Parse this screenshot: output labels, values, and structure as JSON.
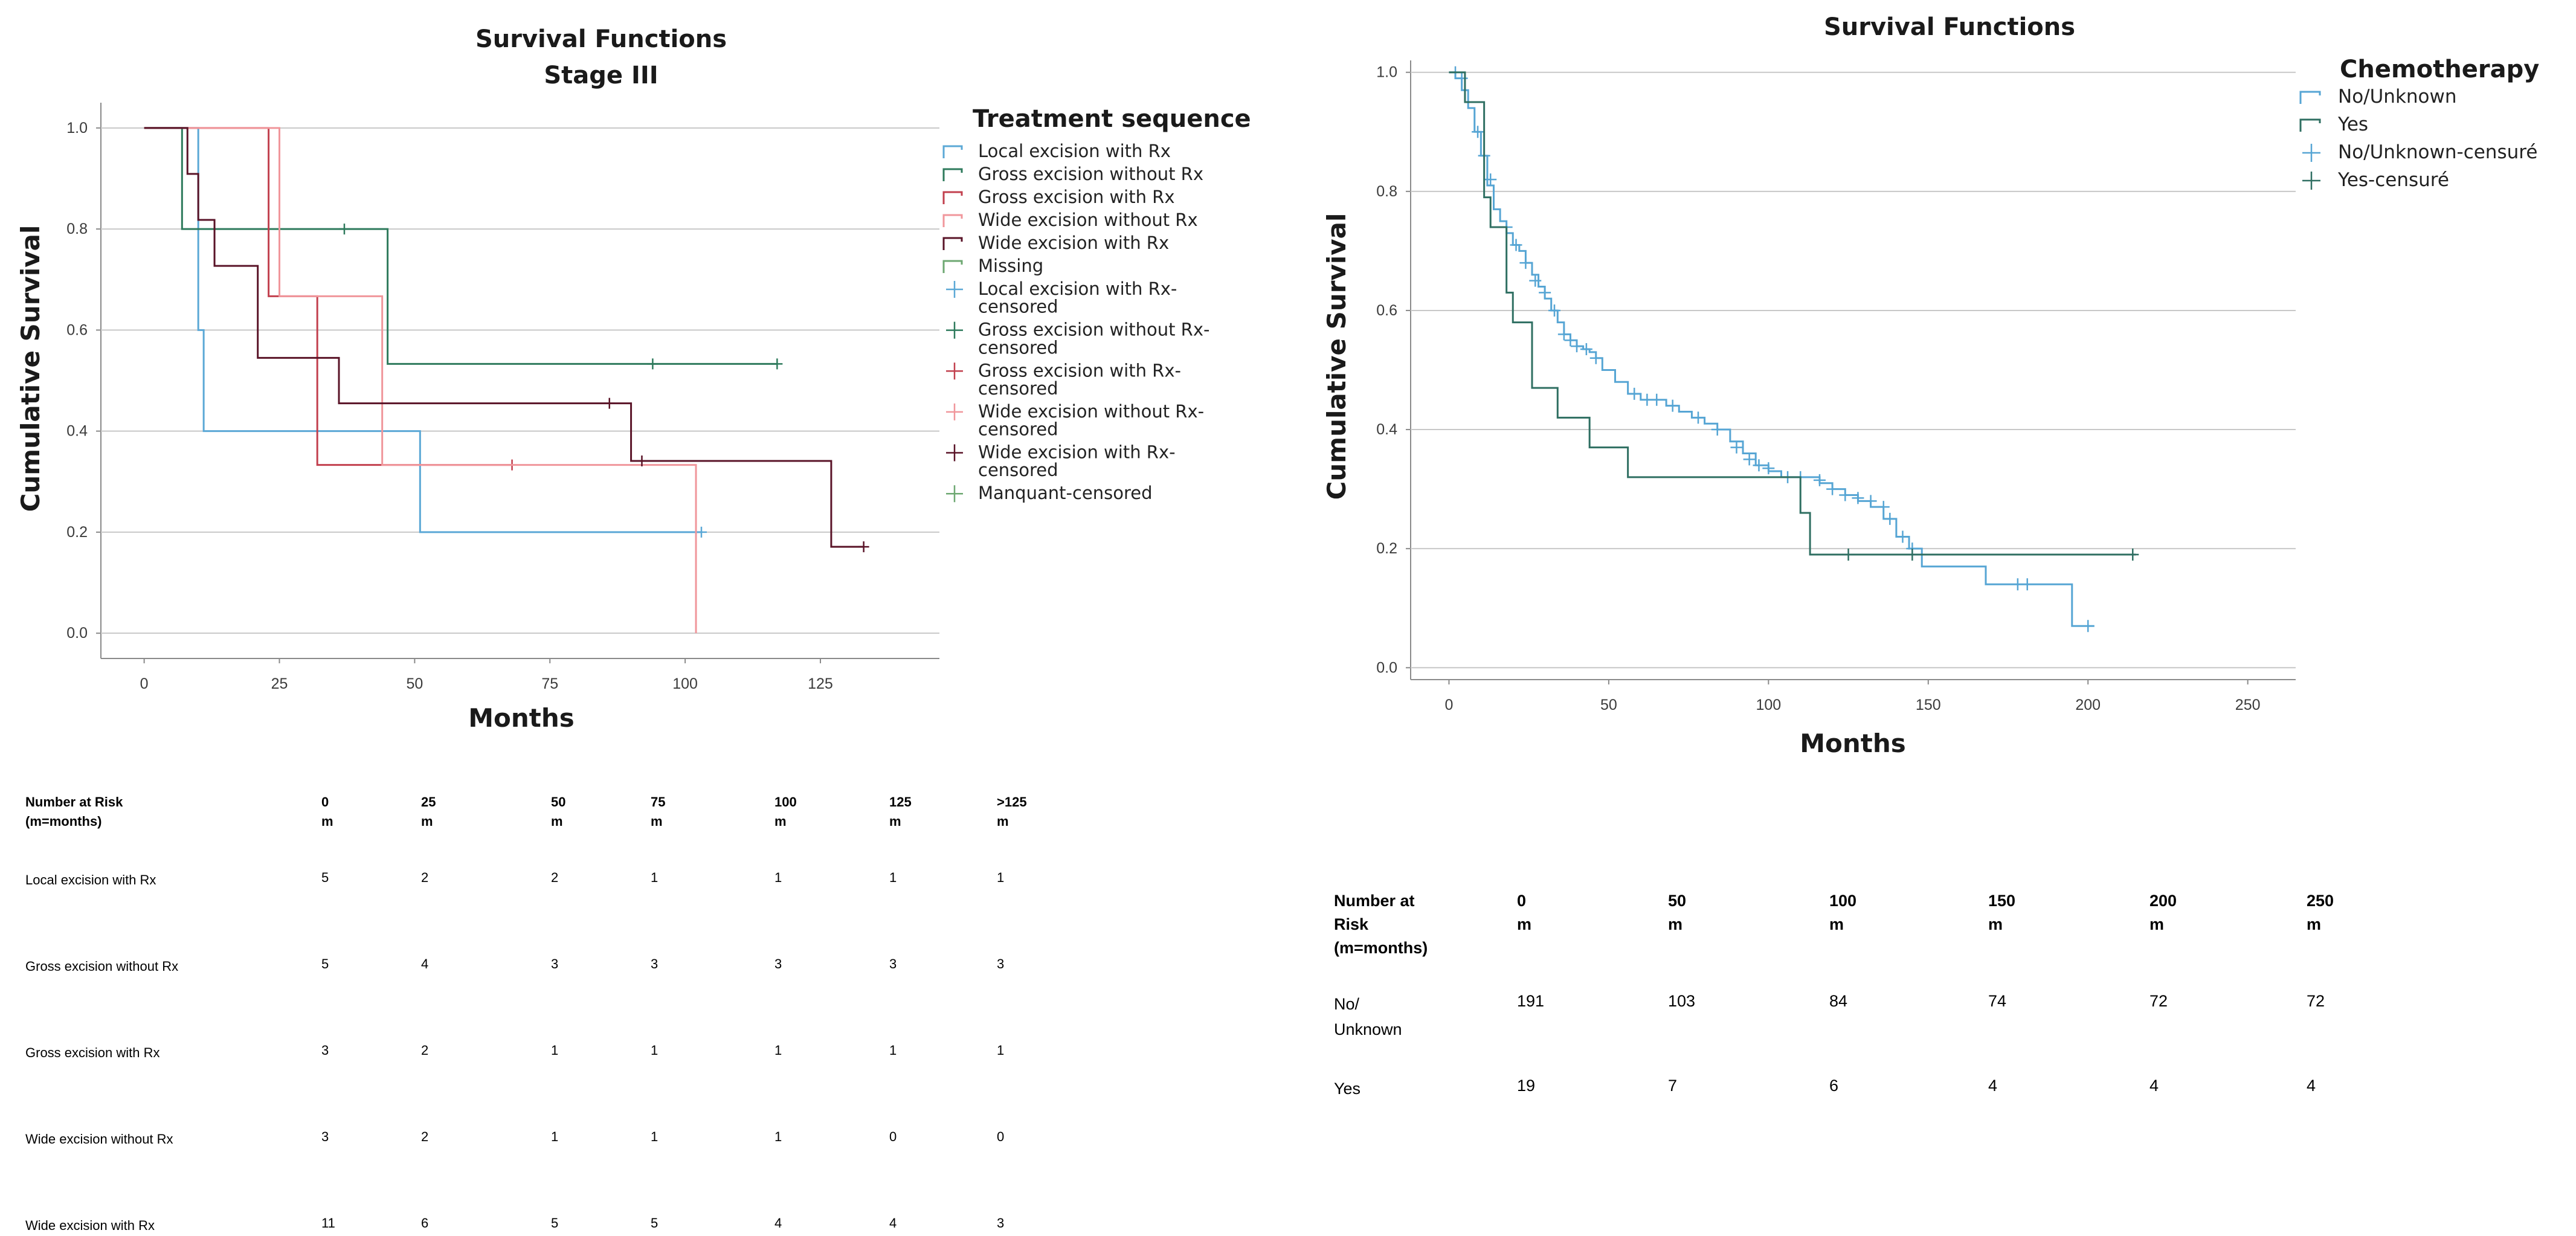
{
  "chart_data": [
    {
      "type": "line",
      "step": true,
      "title": "Survival Functions",
      "subtitle": "Stage III",
      "xlabel": "Months",
      "ylabel": "Cumulative Survival",
      "xlim": [
        -8,
        147
      ],
      "ylim": [
        -0.05,
        1.05
      ],
      "xticks": [
        0,
        25,
        50,
        75,
        100,
        125
      ],
      "yticks": [
        0.0,
        0.2,
        0.4,
        0.6,
        0.8,
        1.0
      ],
      "ytick_labels": [
        "0.0",
        "0.2",
        "0.4",
        "0.6",
        "0.8",
        "1.0"
      ],
      "grid": "horizontal",
      "legend_placement": "right",
      "legend_title": "Treatment sequence",
      "legend": [
        {
          "label": "Local excision with Rx",
          "kind": "line",
          "color": "#5ba8d6"
        },
        {
          "label": "Gross excision without Rx",
          "kind": "line",
          "color": "#2e7a5c"
        },
        {
          "label": "Gross excision with Rx",
          "kind": "line",
          "color": "#c2404e"
        },
        {
          "label": "Wide excision without Rx",
          "kind": "line",
          "color": "#f0969b"
        },
        {
          "label": "Wide excision with Rx",
          "kind": "line",
          "color": "#5a1428"
        },
        {
          "label": "Missing",
          "kind": "line",
          "color": "#6ea872"
        },
        {
          "label": [
            "Local excision with Rx-",
            "censored"
          ],
          "kind": "cross",
          "color": "#5ba8d6"
        },
        {
          "label": [
            "Gross excision without Rx-",
            "censored"
          ],
          "kind": "cross",
          "color": "#2e7a5c"
        },
        {
          "label": [
            "Gross excision with Rx-",
            "censored"
          ],
          "kind": "cross",
          "color": "#c2404e"
        },
        {
          "label": [
            "Wide excision without Rx-",
            "censored"
          ],
          "kind": "cross",
          "color": "#f0969b"
        },
        {
          "label": [
            "Wide excision with Rx-",
            "censored"
          ],
          "kind": "cross",
          "color": "#5a1428"
        },
        {
          "label": "Manquant-censored",
          "kind": "cross",
          "color": "#6ea872"
        }
      ],
      "series": [
        {
          "name": "Local excision with Rx",
          "color": "#5ba8d6",
          "x": [
            0,
            7,
            10,
            11,
            51,
            103
          ],
          "y": [
            1.0,
            1.0,
            0.6,
            0.4,
            0.2,
            0.2
          ],
          "censored": [
            [
              103,
              0.2
            ]
          ]
        },
        {
          "name": "Gross excision without Rx",
          "color": "#2e7a5c",
          "x": [
            0,
            7,
            45,
            117
          ],
          "y": [
            1.0,
            0.8,
            0.533,
            0.533
          ],
          "censored": [
            [
              37,
              0.8
            ],
            [
              94,
              0.533
            ],
            [
              117,
              0.533
            ]
          ]
        },
        {
          "name": "Gross excision with Rx",
          "color": "#c2404e",
          "x": [
            0,
            23,
            32,
            68
          ],
          "y": [
            1.0,
            0.667,
            0.333,
            0.333
          ],
          "censored": [
            [
              68,
              0.333
            ]
          ]
        },
        {
          "name": "Wide excision without Rx",
          "color": "#f0969b",
          "x": [
            0,
            25,
            44,
            102,
            102
          ],
          "y": [
            1.0,
            0.667,
            0.333,
            0.333,
            0.0
          ],
          "censored": []
        },
        {
          "name": "Wide excision with Rx",
          "color": "#5a1428",
          "x": [
            0,
            8,
            10,
            13,
            21,
            36,
            90,
            127,
            133
          ],
          "y": [
            1.0,
            0.909,
            0.818,
            0.727,
            0.545,
            0.455,
            0.341,
            0.171,
            0.171
          ],
          "censored": [
            [
              86,
              0.455
            ],
            [
              92,
              0.341
            ],
            [
              133,
              0.171
            ]
          ]
        }
      ]
    },
    {
      "type": "line",
      "step": true,
      "title": "Survival Functions",
      "xlabel": "Months",
      "ylabel": "Cumulative Survival",
      "xlim": [
        -12,
        265
      ],
      "ylim": [
        -0.02,
        1.02
      ],
      "xticks": [
        0,
        50,
        100,
        150,
        200,
        250
      ],
      "yticks": [
        0.0,
        0.2,
        0.4,
        0.6,
        0.8,
        1.0
      ],
      "ytick_labels": [
        "0.0",
        "0.2",
        "0.4",
        "0.6",
        "0.8",
        "1.0"
      ],
      "grid": "horizontal",
      "legend_placement": "right",
      "legend_title": "Chemotherapy",
      "legend": [
        {
          "label": "No/Unknown",
          "kind": "line",
          "color": "#56a5d4"
        },
        {
          "label": "Yes",
          "kind": "line",
          "color": "#2f6f62"
        },
        {
          "label": "No/Unknown-censuré",
          "kind": "cross",
          "color": "#56a5d4"
        },
        {
          "label": "Yes-censuré",
          "kind": "cross",
          "color": "#2f6f62"
        }
      ],
      "series": [
        {
          "name": "No/Unknown",
          "color": "#56a5d4",
          "x": [
            0,
            2,
            4,
            6,
            8,
            10,
            12,
            14,
            16,
            18,
            20,
            22,
            24,
            26,
            28,
            30,
            32,
            34,
            36,
            38,
            40,
            42,
            44,
            46,
            48,
            52,
            56,
            60,
            64,
            68,
            72,
            76,
            80,
            84,
            88,
            92,
            96,
            100,
            104,
            110,
            116,
            120,
            124,
            128,
            132,
            136,
            140,
            144,
            148,
            160,
            168,
            176,
            184,
            195,
            202
          ],
          "y": [
            1.0,
            0.99,
            0.97,
            0.94,
            0.9,
            0.86,
            0.81,
            0.77,
            0.75,
            0.73,
            0.71,
            0.7,
            0.68,
            0.66,
            0.64,
            0.62,
            0.6,
            0.58,
            0.56,
            0.55,
            0.54,
            0.535,
            0.53,
            0.52,
            0.5,
            0.48,
            0.46,
            0.45,
            0.45,
            0.44,
            0.43,
            0.42,
            0.41,
            0.4,
            0.38,
            0.36,
            0.34,
            0.33,
            0.32,
            0.32,
            0.31,
            0.3,
            0.29,
            0.28,
            0.27,
            0.25,
            0.22,
            0.2,
            0.17,
            0.17,
            0.14,
            0.14,
            0.14,
            0.07,
            0.07
          ],
          "censored": [
            [
              2,
              1.0
            ],
            [
              4,
              0.99
            ],
            [
              9,
              0.9
            ],
            [
              11,
              0.86
            ],
            [
              13,
              0.82
            ],
            [
              18,
              0.74
            ],
            [
              21,
              0.71
            ],
            [
              24,
              0.68
            ],
            [
              27,
              0.65
            ],
            [
              30,
              0.63
            ],
            [
              33,
              0.6
            ],
            [
              36,
              0.56
            ],
            [
              38,
              0.55
            ],
            [
              40,
              0.54
            ],
            [
              43,
              0.535
            ],
            [
              46,
              0.52
            ],
            [
              58,
              0.46
            ],
            [
              62,
              0.45
            ],
            [
              65,
              0.45
            ],
            [
              70,
              0.44
            ],
            [
              78,
              0.42
            ],
            [
              84,
              0.4
            ],
            [
              90,
              0.37
            ],
            [
              94,
              0.35
            ],
            [
              97,
              0.34
            ],
            [
              100,
              0.335
            ],
            [
              106,
              0.32
            ],
            [
              110,
              0.32
            ],
            [
              116,
              0.315
            ],
            [
              120,
              0.3
            ],
            [
              124,
              0.29
            ],
            [
              128,
              0.285
            ],
            [
              132,
              0.28
            ],
            [
              136,
              0.27
            ],
            [
              138,
              0.25
            ],
            [
              142,
              0.22
            ],
            [
              145,
              0.2
            ],
            [
              178,
              0.14
            ],
            [
              181,
              0.14
            ],
            [
              200,
              0.07
            ]
          ]
        },
        {
          "name": "Yes",
          "color": "#2f6f62",
          "x": [
            0,
            5,
            11,
            13,
            18,
            20,
            26,
            34,
            44,
            56,
            110,
            113,
            215
          ],
          "y": [
            1.0,
            0.95,
            0.79,
            0.74,
            0.63,
            0.58,
            0.47,
            0.42,
            0.37,
            0.32,
            0.26,
            0.19,
            0.19
          ],
          "censored": [
            [
              125,
              0.19
            ],
            [
              145,
              0.19
            ],
            [
              214,
              0.19
            ]
          ]
        }
      ]
    }
  ],
  "risk_tables": [
    {
      "header": {
        "label": [
          "Number at Risk",
          "(m=months)"
        ],
        "cols": [
          [
            "0",
            "m"
          ],
          [
            "25",
            "m"
          ],
          [
            "50",
            "m"
          ],
          [
            "75",
            "m"
          ],
          [
            "100",
            "m"
          ],
          [
            "125",
            "m"
          ],
          [
            ">125",
            "m"
          ]
        ]
      },
      "rows": [
        {
          "label": [
            "Local excision with Rx"
          ],
          "values": [
            "5",
            "2",
            "2",
            "1",
            "1",
            "1",
            "1"
          ]
        },
        {
          "label": [
            "Gross excision without Rx"
          ],
          "values": [
            "5",
            "4",
            "3",
            "3",
            "3",
            "3",
            "3"
          ]
        },
        {
          "label": [
            "Gross excision with Rx"
          ],
          "values": [
            "3",
            "2",
            "1",
            "1",
            "1",
            "1",
            "1"
          ]
        },
        {
          "label": [
            "Wide excision without Rx"
          ],
          "values": [
            "3",
            "2",
            "1",
            "1",
            "1",
            "0",
            "0"
          ]
        },
        {
          "label": [
            "Wide excision with Rx"
          ],
          "values": [
            "11",
            "6",
            "5",
            "5",
            "4",
            "4",
            "3"
          ]
        }
      ]
    },
    {
      "header": {
        "label": [
          "Number at",
          "Risk",
          "(m=months)"
        ],
        "cols": [
          [
            "0",
            "m"
          ],
          [
            "50",
            "m"
          ],
          [
            "100",
            "m"
          ],
          [
            "150",
            "m"
          ],
          [
            "200",
            "m"
          ],
          [
            "250",
            "m"
          ]
        ]
      },
      "rows": [
        {
          "label": [
            "No/",
            "Unknown"
          ],
          "values": [
            "191",
            "103",
            "84",
            "74",
            "72",
            "72"
          ]
        },
        {
          "label": [
            "Yes"
          ],
          "values": [
            "19",
            "7",
            "6",
            "4",
            "4",
            "4"
          ]
        }
      ]
    }
  ]
}
